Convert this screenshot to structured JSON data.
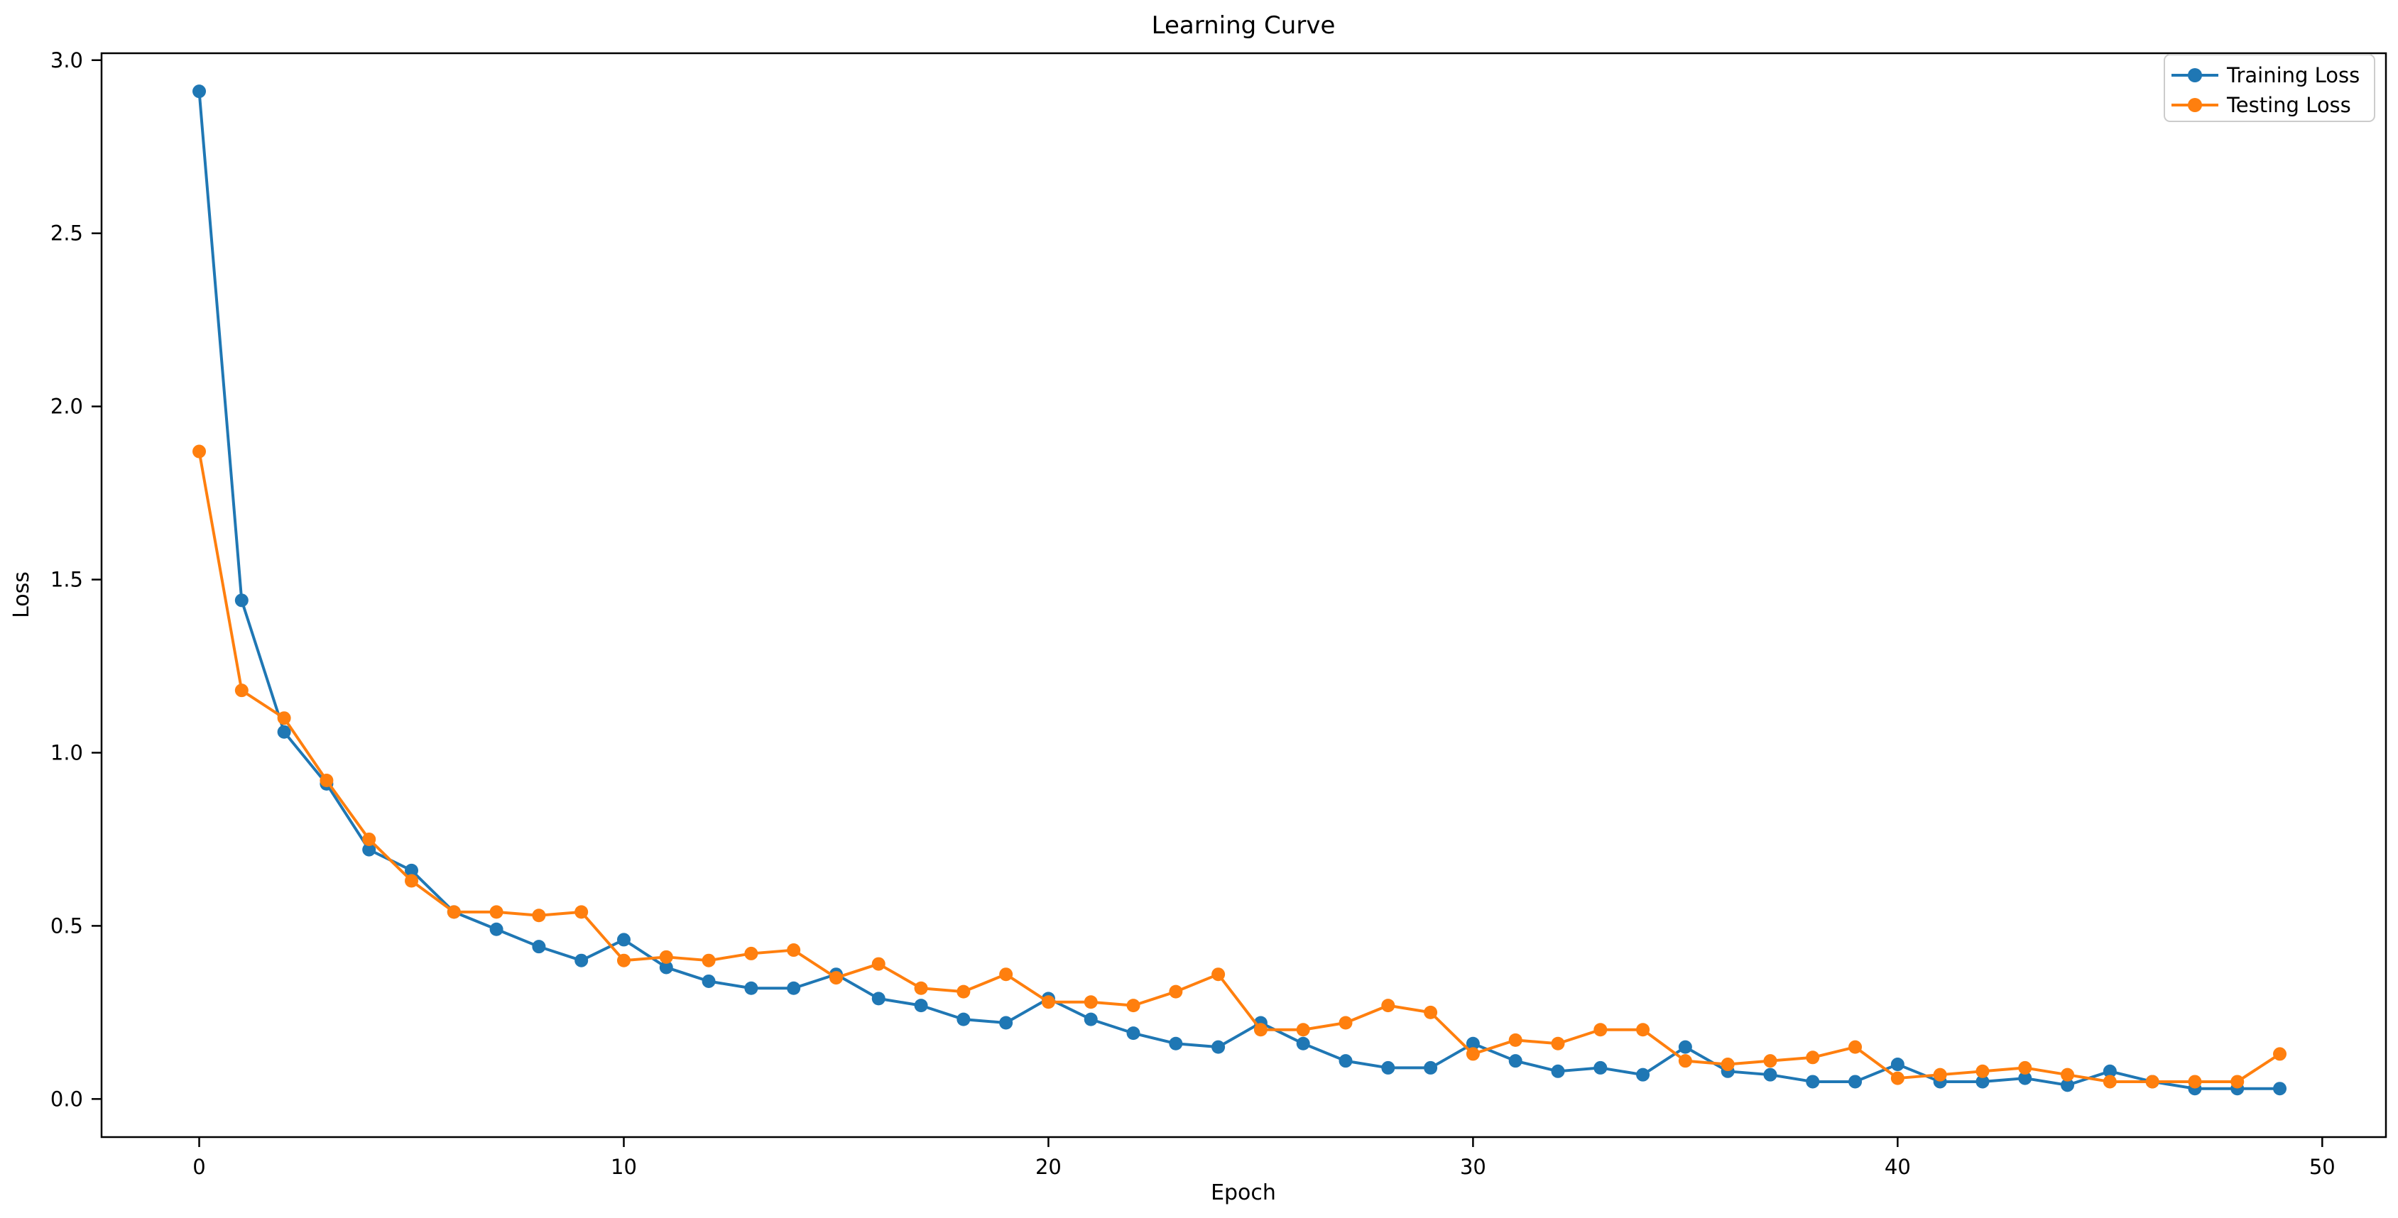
{
  "figure": {
    "title": "Learning Curve"
  },
  "chart_data": {
    "type": "line",
    "title": "Learning Curve",
    "xlabel": "Epoch",
    "ylabel": "Loss",
    "x": [
      0,
      1,
      2,
      3,
      4,
      5,
      6,
      7,
      8,
      9,
      10,
      11,
      12,
      13,
      14,
      15,
      16,
      17,
      18,
      19,
      20,
      21,
      22,
      23,
      24,
      25,
      26,
      27,
      28,
      29,
      30,
      31,
      32,
      33,
      34,
      35,
      36,
      37,
      38,
      39,
      40,
      41,
      42,
      43,
      44,
      45,
      46,
      47,
      48,
      49
    ],
    "series": [
      {
        "name": "Training Loss",
        "color": "#1f77b4",
        "values": [
          2.91,
          1.44,
          1.06,
          0.91,
          0.72,
          0.66,
          0.54,
          0.49,
          0.44,
          0.4,
          0.46,
          0.38,
          0.34,
          0.32,
          0.32,
          0.36,
          0.29,
          0.27,
          0.23,
          0.22,
          0.29,
          0.23,
          0.19,
          0.16,
          0.15,
          0.22,
          0.16,
          0.11,
          0.09,
          0.09,
          0.16,
          0.11,
          0.08,
          0.09,
          0.07,
          0.15,
          0.08,
          0.07,
          0.05,
          0.05,
          0.1,
          0.05,
          0.05,
          0.06,
          0.04,
          0.08,
          0.05,
          0.03,
          0.03,
          0.03
        ]
      },
      {
        "name": "Testing Loss",
        "color": "#ff7f0e",
        "values": [
          1.87,
          1.18,
          1.1,
          0.92,
          0.75,
          0.63,
          0.54,
          0.54,
          0.53,
          0.54,
          0.4,
          0.41,
          0.4,
          0.42,
          0.43,
          0.35,
          0.39,
          0.32,
          0.31,
          0.36,
          0.28,
          0.28,
          0.27,
          0.31,
          0.36,
          0.2,
          0.2,
          0.22,
          0.27,
          0.25,
          0.13,
          0.17,
          0.16,
          0.2,
          0.2,
          0.11,
          0.1,
          0.11,
          0.12,
          0.15,
          0.06,
          0.07,
          0.08,
          0.09,
          0.07,
          0.05,
          0.05,
          0.05,
          0.05,
          0.13
        ]
      }
    ],
    "xticks": [
      0,
      10,
      20,
      30,
      40,
      50
    ],
    "yticks": [
      0.0,
      0.5,
      1.0,
      1.5,
      2.0,
      2.5,
      3.0
    ],
    "xlim": [
      -2.3,
      51.5
    ],
    "ylim": [
      -0.11,
      3.02
    ],
    "grid": false,
    "legend": {
      "position": "upper-right",
      "entries": [
        "Training Loss",
        "Testing Loss"
      ]
    },
    "colors": {
      "training": "#1f77b4",
      "testing": "#ff7f0e",
      "spine": "#000000",
      "legend_border": "#cccccc",
      "background": "#ffffff"
    }
  }
}
